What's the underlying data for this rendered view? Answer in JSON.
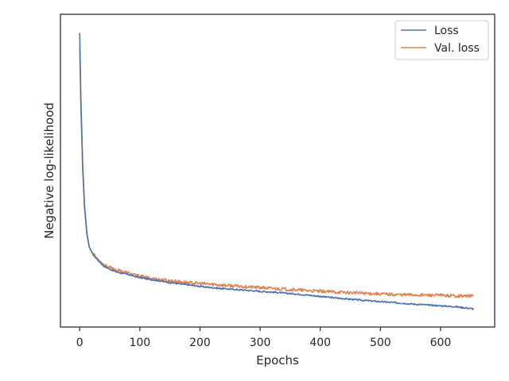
{
  "chart_data": {
    "type": "line",
    "xlabel": "Epochs",
    "ylabel": "Negative log-likelihood",
    "xlim": [
      -32,
      690
    ],
    "ylim": [
      0.0,
      1.0
    ],
    "y_tick_labels_visible": false,
    "xticks": [
      0,
      100,
      200,
      300,
      400,
      500,
      600
    ],
    "grid": false,
    "legend_position": "top-right",
    "series": [
      {
        "name": "Loss",
        "color": "#4c72b0",
        "points": [
          [
            0,
            0.94
          ],
          [
            2,
            0.73
          ],
          [
            5,
            0.52
          ],
          [
            8,
            0.39
          ],
          [
            12,
            0.3
          ],
          [
            16,
            0.255
          ],
          [
            20,
            0.24
          ],
          [
            25,
            0.225
          ],
          [
            30,
            0.215
          ],
          [
            35,
            0.205
          ],
          [
            40,
            0.195
          ],
          [
            50,
            0.185
          ],
          [
            60,
            0.177
          ],
          [
            70,
            0.172
          ],
          [
            80,
            0.168
          ],
          [
            90,
            0.163
          ],
          [
            100,
            0.158
          ],
          [
            125,
            0.15
          ],
          [
            150,
            0.142
          ],
          [
            175,
            0.136
          ],
          [
            200,
            0.13
          ],
          [
            225,
            0.125
          ],
          [
            250,
            0.121
          ],
          [
            275,
            0.118
          ],
          [
            300,
            0.114
          ],
          [
            325,
            0.111
          ],
          [
            350,
            0.107
          ],
          [
            375,
            0.103
          ],
          [
            400,
            0.098
          ],
          [
            425,
            0.093
          ],
          [
            450,
            0.089
          ],
          [
            475,
            0.085
          ],
          [
            500,
            0.081
          ],
          [
            525,
            0.078
          ],
          [
            550,
            0.074
          ],
          [
            575,
            0.071
          ],
          [
            600,
            0.068
          ],
          [
            625,
            0.065
          ],
          [
            655,
            0.058
          ]
        ]
      },
      {
        "name": "Val. loss",
        "color": "#dd8452",
        "points": [
          [
            0,
            0.89
          ],
          [
            2,
            0.7
          ],
          [
            5,
            0.5
          ],
          [
            8,
            0.38
          ],
          [
            12,
            0.295
          ],
          [
            16,
            0.255
          ],
          [
            20,
            0.24
          ],
          [
            25,
            0.228
          ],
          [
            30,
            0.218
          ],
          [
            35,
            0.208
          ],
          [
            40,
            0.2
          ],
          [
            50,
            0.19
          ],
          [
            60,
            0.183
          ],
          [
            70,
            0.178
          ],
          [
            80,
            0.173
          ],
          [
            90,
            0.167
          ],
          [
            100,
            0.162
          ],
          [
            125,
            0.154
          ],
          [
            150,
            0.148
          ],
          [
            175,
            0.143
          ],
          [
            200,
            0.139
          ],
          [
            225,
            0.136
          ],
          [
            250,
            0.132
          ],
          [
            275,
            0.129
          ],
          [
            300,
            0.126
          ],
          [
            325,
            0.123
          ],
          [
            350,
            0.12
          ],
          [
            375,
            0.117
          ],
          [
            400,
            0.114
          ],
          [
            425,
            0.112
          ],
          [
            450,
            0.11
          ],
          [
            475,
            0.108
          ],
          [
            500,
            0.106
          ],
          [
            525,
            0.104
          ],
          [
            550,
            0.103
          ],
          [
            575,
            0.102
          ],
          [
            600,
            0.101
          ],
          [
            625,
            0.1
          ],
          [
            655,
            0.099
          ]
        ]
      }
    ]
  }
}
